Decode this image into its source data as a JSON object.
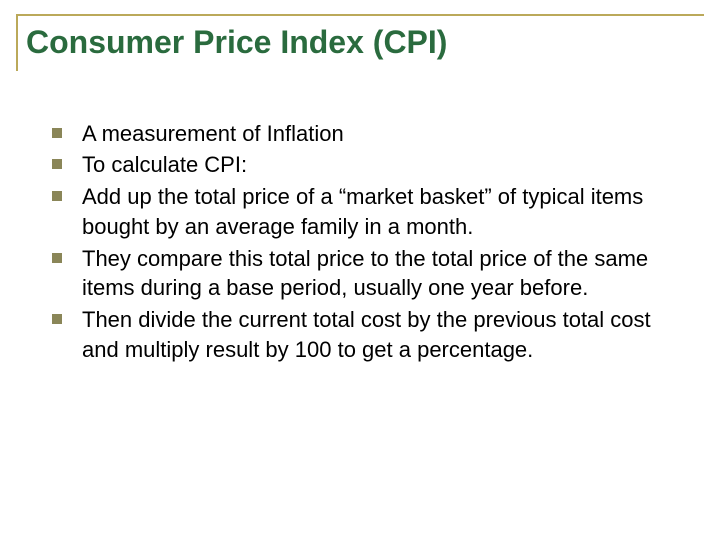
{
  "slide": {
    "title": "Consumer Price Index (CPI)",
    "title_color": "#2a6b3e",
    "title_fontsize": 32,
    "title_border_color": "#bba95a",
    "bullet_marker_color": "#8a8658",
    "bullet_marker_size": 10,
    "body_fontsize": 22,
    "body_color": "#000000",
    "background_color": "#ffffff",
    "bullets": [
      "A measurement of Inflation",
      "To calculate CPI:",
      "Add up the total price of a “market basket” of typical items bought by an average family in a month.",
      "They compare this total price to the total price of the same items during a base period, usually one year before.",
      "Then divide the current total cost by the previous total cost and multiply result by 100 to get a percentage."
    ]
  }
}
